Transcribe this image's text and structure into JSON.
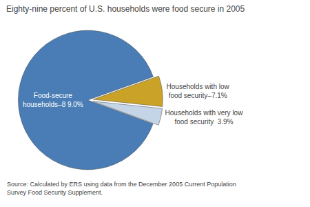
{
  "chart_data": {
    "type": "pie",
    "title": "Eighty-nine percent of U.S. households were food secure in 2005",
    "values": [
      89.0,
      7.1,
      3.9
    ],
    "value_labels": [
      "Food-secure\nhouseholds–8 9.0%",
      "Households with low\nfood security–7.1%",
      "Households with very low\nfood security  3.9%"
    ],
    "data_labels": true,
    "colors": [
      "#4a7db5",
      "#c9a227",
      "#c5d5e8"
    ],
    "annotations": [
      "Source: Calculated by ERS using data from the December 2005 Current Population\nSurvey Food Security Supplement."
    ]
  }
}
